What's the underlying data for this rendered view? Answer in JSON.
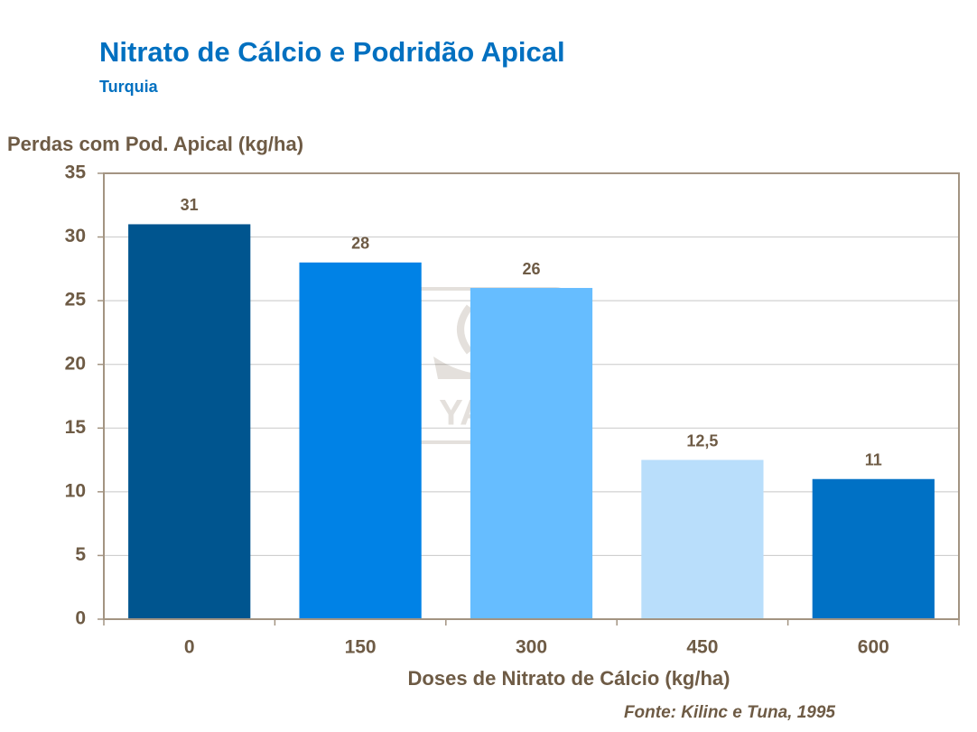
{
  "chart_data": {
    "type": "bar",
    "title": "Nitrato de Cálcio e Podridão Apical",
    "subtitle": "Turquia",
    "y_label": "Perdas com Pod. Apical (kg/ha)",
    "x_label": "Doses de Nitrato de Cálcio (kg/ha)",
    "source": "Fonte: Kilinc e Tuna, 1995",
    "watermark": "YARA",
    "categories": [
      "0",
      "150",
      "300",
      "450",
      "600"
    ],
    "values": [
      31,
      28,
      26,
      12.5,
      11
    ],
    "value_labels": [
      "31",
      "28",
      "26",
      "12,5",
      "11"
    ],
    "colors": [
      "#00558f",
      "#0082e6",
      "#66bdff",
      "#b9defb",
      "#0071c5"
    ],
    "ylim": [
      0,
      35
    ],
    "yticks": [
      0,
      5,
      10,
      15,
      20,
      25,
      30,
      35
    ],
    "grid": true
  }
}
